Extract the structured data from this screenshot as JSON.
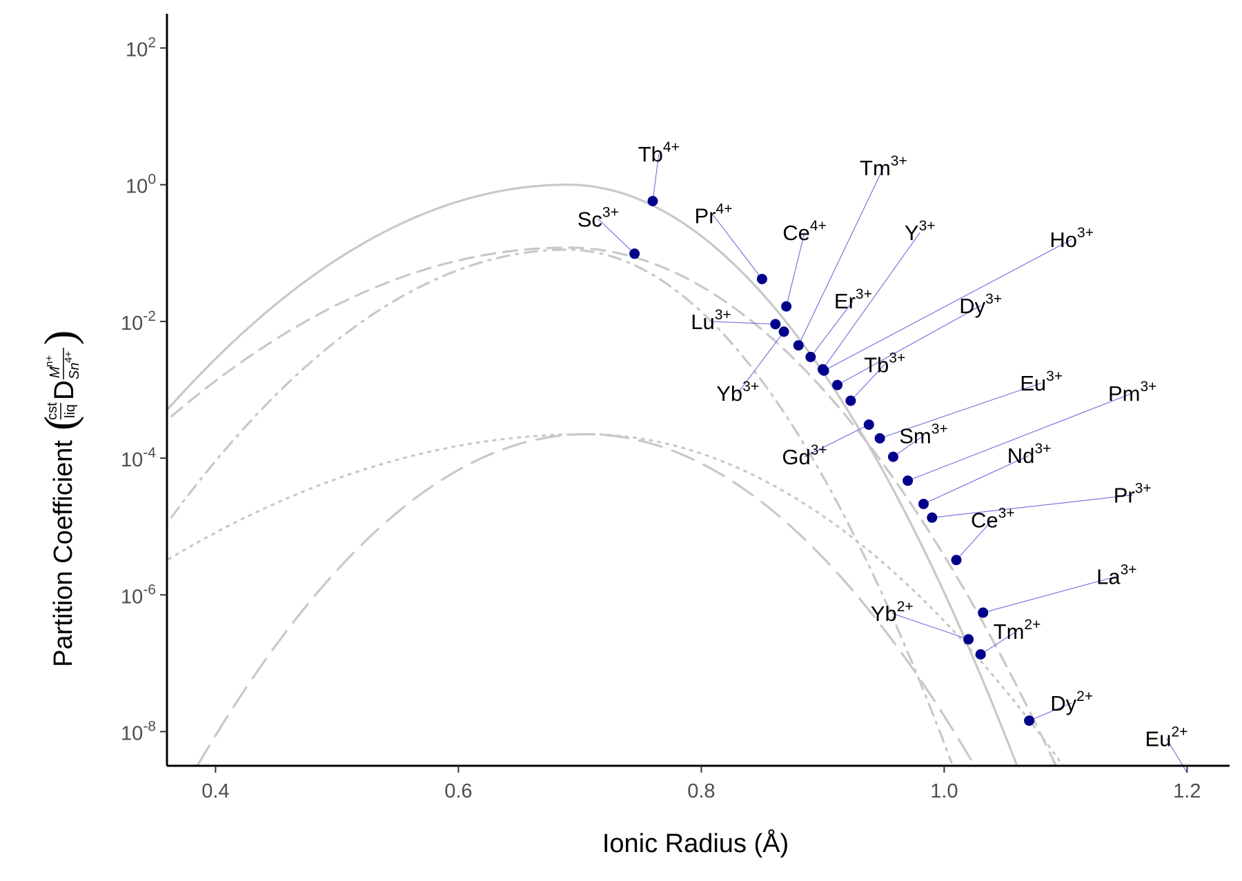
{
  "chart_data": {
    "type": "scatter",
    "xlabel": "Ionic Radius (Å)",
    "ylabel": {
      "main": "Partition Coefficient",
      "pre_top": "cst",
      "pre_bottom": "liq",
      "symbol": "D",
      "sub_top": "M",
      "sub_top_sup": "n+",
      "sub_bottom": "Sn",
      "sub_bottom_sup": "4+"
    },
    "y_scale": "log",
    "xlim": [
      0.36,
      1.235
    ],
    "ylim_log10": [
      -8.5,
      2.5
    ],
    "x_ticks": [
      {
        "value": 0.4,
        "label": "0.4"
      },
      {
        "value": 0.6,
        "label": "0.6"
      },
      {
        "value": 0.8,
        "label": "0.8"
      },
      {
        "value": 1.0,
        "label": "1.0"
      },
      {
        "value": 1.2,
        "label": "1.2"
      }
    ],
    "y_ticks": [
      {
        "exp": 2,
        "base": "10",
        "power": "2"
      },
      {
        "exp": 0,
        "base": "10",
        "power": "0"
      },
      {
        "exp": -2,
        "base": "10",
        "power": "-2"
      },
      {
        "exp": -4,
        "base": "10",
        "power": "-4"
      },
      {
        "exp": -6,
        "base": "10",
        "power": "-6"
      },
      {
        "exp": -8,
        "base": "10",
        "power": "-8"
      }
    ],
    "grid": false,
    "colors": {
      "points": "#00008b",
      "leaders": "#6a6ae0",
      "curves": "#c8c8c8",
      "axis": "#000000"
    },
    "curves": [
      {
        "style": "solid",
        "peak_x": 0.69,
        "peak_log10": 0.0,
        "left_anchor": [
          0.35,
          -3.5
        ],
        "right_anchor": [
          1.06,
          -8.5
        ]
      },
      {
        "style": "dashed",
        "peak_x": 0.69,
        "peak_log10": -0.92,
        "left_anchor": [
          0.35,
          -3.6
        ],
        "right_anchor": [
          1.092,
          -8.5
        ]
      },
      {
        "style": "dashdot",
        "peak_x": 0.69,
        "peak_log10": -0.95,
        "left_anchor": [
          0.35,
          -5.2
        ],
        "right_anchor": [
          1.007,
          -8.5
        ]
      },
      {
        "style": "dotted",
        "peak_x": 0.705,
        "peak_log10": -3.65,
        "left_anchor": [
          0.35,
          -5.6
        ],
        "right_anchor": [
          1.098,
          -8.5
        ]
      },
      {
        "style": "longdash",
        "peak_x": 0.705,
        "peak_log10": -3.65,
        "left_anchor": [
          0.385,
          -8.5
        ],
        "right_anchor": [
          1.025,
          -8.5
        ]
      }
    ],
    "points": [
      {
        "ion": "Tb",
        "charge": "4+",
        "x": 0.76,
        "y_log10": -0.24,
        "label_x": 0.765,
        "label_log10": 0.45
      },
      {
        "ion": "Sc",
        "charge": "3+",
        "x": 0.745,
        "y_log10": -1.01,
        "label_x": 0.715,
        "label_log10": -0.5
      },
      {
        "ion": "Pr",
        "charge": "4+",
        "x": 0.85,
        "y_log10": -1.38,
        "label_x": 0.81,
        "label_log10": -0.45
      },
      {
        "ion": "Ce",
        "charge": "4+",
        "x": 0.87,
        "y_log10": -1.78,
        "label_x": 0.885,
        "label_log10": -0.7
      },
      {
        "ion": "Lu",
        "charge": "3+",
        "x": 0.861,
        "y_log10": -2.04,
        "label_x": 0.808,
        "label_log10": -2.0
      },
      {
        "ion": "Yb",
        "charge": "3+",
        "x": 0.868,
        "y_log10": -2.15,
        "label_x": 0.83,
        "label_log10": -3.05
      },
      {
        "ion": "Tm",
        "charge": "3+",
        "x": 0.88,
        "y_log10": -2.35,
        "label_x": 0.95,
        "label_log10": 0.25
      },
      {
        "ion": "Er",
        "charge": "3+",
        "x": 0.89,
        "y_log10": -2.52,
        "label_x": 0.925,
        "label_log10": -1.7
      },
      {
        "ion": "Y",
        "charge": "3+",
        "x": 0.9,
        "y_log10": -2.7,
        "label_x": 0.98,
        "label_log10": -0.7
      },
      {
        "ion": "Ho",
        "charge": "3+",
        "x": 0.901,
        "y_log10": -2.72,
        "label_x": 1.105,
        "label_log10": -0.8
      },
      {
        "ion": "Dy",
        "charge": "3+",
        "x": 0.912,
        "y_log10": -2.93,
        "label_x": 1.03,
        "label_log10": -1.77
      },
      {
        "ion": "Tb",
        "charge": "3+",
        "x": 0.923,
        "y_log10": -3.16,
        "label_x": 0.951,
        "label_log10": -2.63
      },
      {
        "ion": "Gd",
        "charge": "3+",
        "x": 0.938,
        "y_log10": -3.51,
        "label_x": 0.885,
        "label_log10": -3.98
      },
      {
        "ion": "Eu",
        "charge": "3+",
        "x": 0.947,
        "y_log10": -3.71,
        "label_x": 1.08,
        "label_log10": -2.9
      },
      {
        "ion": "Sm",
        "charge": "3+",
        "x": 0.958,
        "y_log10": -3.98,
        "label_x": 0.983,
        "label_log10": -3.67
      },
      {
        "ion": "Pm",
        "charge": "3+",
        "x": 0.97,
        "y_log10": -4.33,
        "label_x": 1.155,
        "label_log10": -3.05
      },
      {
        "ion": "Nd",
        "charge": "3+",
        "x": 0.983,
        "y_log10": -4.67,
        "label_x": 1.07,
        "label_log10": -3.96
      },
      {
        "ion": "Pr",
        "charge": "3+",
        "x": 0.99,
        "y_log10": -4.87,
        "label_x": 1.155,
        "label_log10": -4.54
      },
      {
        "ion": "Ce",
        "charge": "3+",
        "x": 1.01,
        "y_log10": -5.49,
        "label_x": 1.04,
        "label_log10": -4.9
      },
      {
        "ion": "La",
        "charge": "3+",
        "x": 1.032,
        "y_log10": -6.26,
        "label_x": 1.142,
        "label_log10": -5.73
      },
      {
        "ion": "Yb",
        "charge": "2+",
        "x": 1.02,
        "y_log10": -6.65,
        "label_x": 0.957,
        "label_log10": -6.27
      },
      {
        "ion": "Tm",
        "charge": "2+",
        "x": 1.03,
        "y_log10": -6.87,
        "label_x": 1.06,
        "label_log10": -6.53
      },
      {
        "ion": "Dy",
        "charge": "2+",
        "x": 1.07,
        "y_log10": -7.84,
        "label_x": 1.105,
        "label_log10": -7.58
      },
      {
        "ion": "Eu",
        "charge": "2+",
        "x": 1.2,
        "y_log10": -8.6,
        "label_x": 1.183,
        "label_log10": -8.1
      }
    ]
  }
}
